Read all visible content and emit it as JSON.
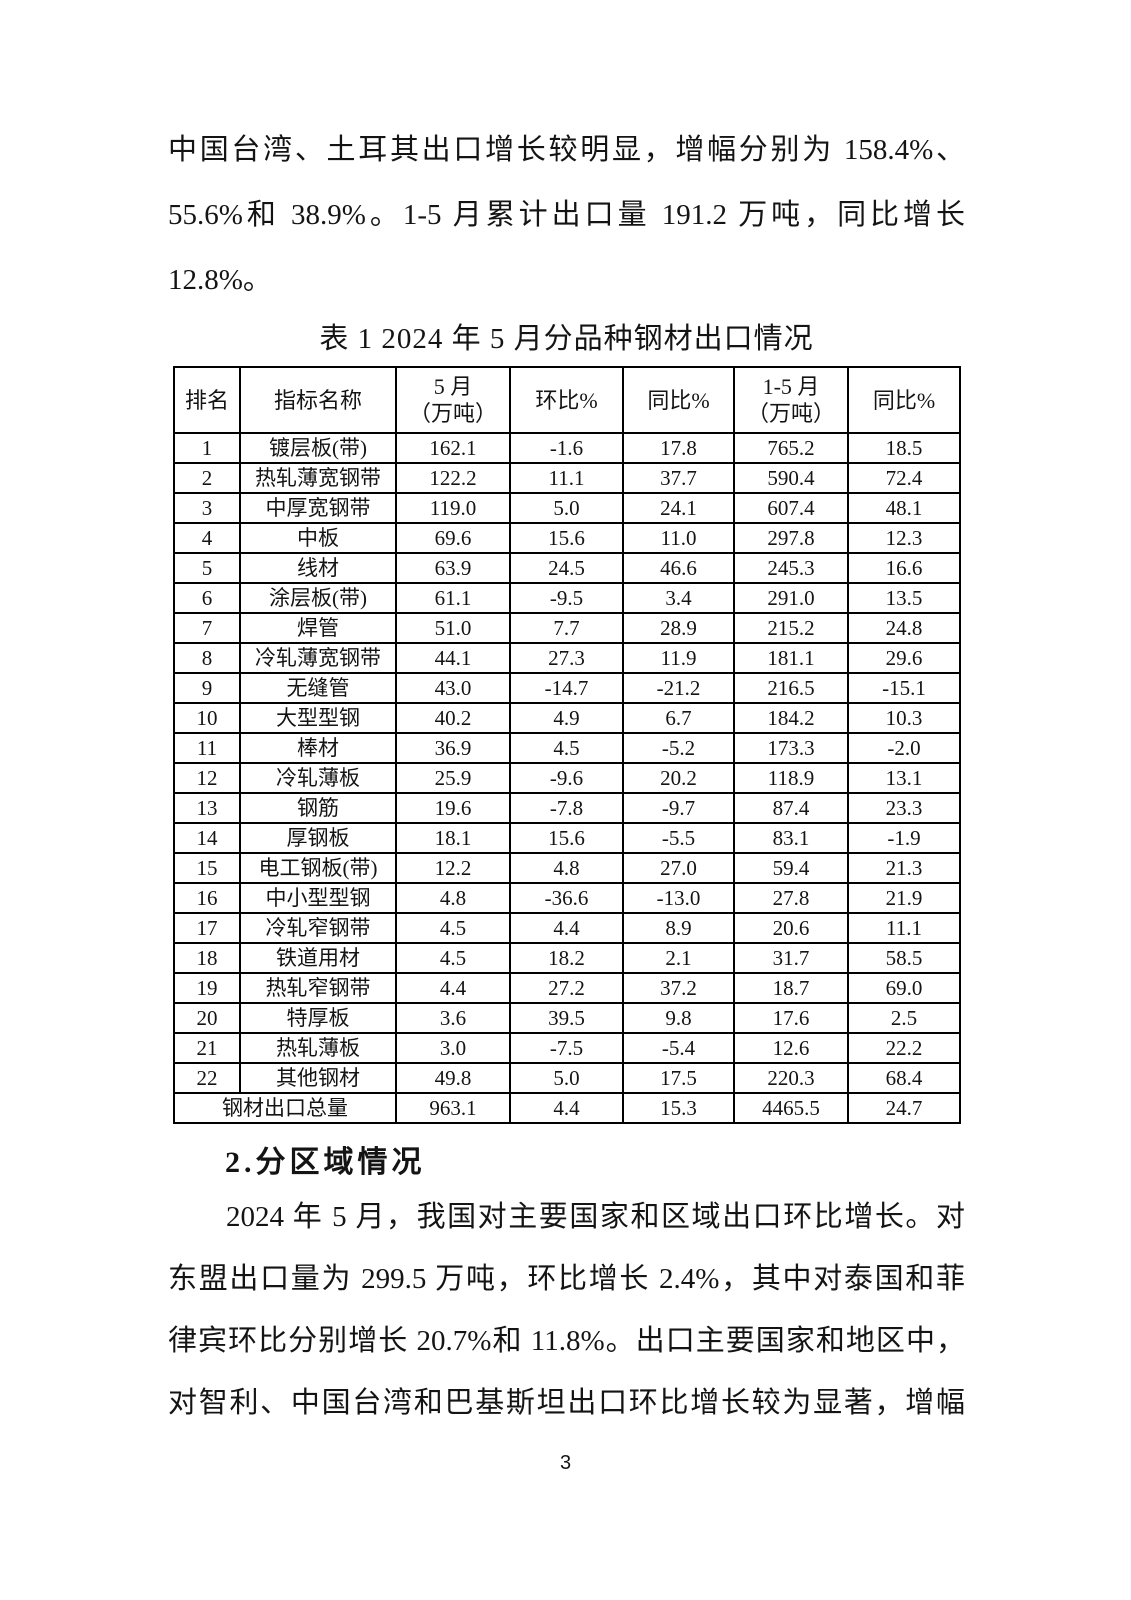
{
  "intro": {
    "lines": [
      "中国台湾、土耳其出口增长较明显，增幅分别为 158.4%、",
      "55.6%和 38.9%。1-5 月累计出口量 191.2 万吨，同比增长",
      "12.8%。"
    ]
  },
  "table": {
    "title": "表 1 2024 年 5 月分品种钢材出口情况",
    "headers": {
      "rank": "排名",
      "name": "指标名称",
      "may": "5 月\n（万吨）",
      "mom": "环比%",
      "yoy": "同比%",
      "cum": "1-5 月\n（万吨）",
      "cum_yoy": "同比%"
    },
    "rows": [
      {
        "rank": "1",
        "name": "镀层板(带)",
        "may": "162.1",
        "mom": "-1.6",
        "yoy": "17.8",
        "cum": "765.2",
        "cum_yoy": "18.5"
      },
      {
        "rank": "2",
        "name": "热轧薄宽钢带",
        "may": "122.2",
        "mom": "11.1",
        "yoy": "37.7",
        "cum": "590.4",
        "cum_yoy": "72.4"
      },
      {
        "rank": "3",
        "name": "中厚宽钢带",
        "may": "119.0",
        "mom": "5.0",
        "yoy": "24.1",
        "cum": "607.4",
        "cum_yoy": "48.1"
      },
      {
        "rank": "4",
        "name": "中板",
        "may": "69.6",
        "mom": "15.6",
        "yoy": "11.0",
        "cum": "297.8",
        "cum_yoy": "12.3"
      },
      {
        "rank": "5",
        "name": "线材",
        "may": "63.9",
        "mom": "24.5",
        "yoy": "46.6",
        "cum": "245.3",
        "cum_yoy": "16.6"
      },
      {
        "rank": "6",
        "name": "涂层板(带)",
        "may": "61.1",
        "mom": "-9.5",
        "yoy": "3.4",
        "cum": "291.0",
        "cum_yoy": "13.5"
      },
      {
        "rank": "7",
        "name": "焊管",
        "may": "51.0",
        "mom": "7.7",
        "yoy": "28.9",
        "cum": "215.2",
        "cum_yoy": "24.8"
      },
      {
        "rank": "8",
        "name": "冷轧薄宽钢带",
        "may": "44.1",
        "mom": "27.3",
        "yoy": "11.9",
        "cum": "181.1",
        "cum_yoy": "29.6"
      },
      {
        "rank": "9",
        "name": "无缝管",
        "may": "43.0",
        "mom": "-14.7",
        "yoy": "-21.2",
        "cum": "216.5",
        "cum_yoy": "-15.1"
      },
      {
        "rank": "10",
        "name": "大型型钢",
        "may": "40.2",
        "mom": "4.9",
        "yoy": "6.7",
        "cum": "184.2",
        "cum_yoy": "10.3"
      },
      {
        "rank": "11",
        "name": "棒材",
        "may": "36.9",
        "mom": "4.5",
        "yoy": "-5.2",
        "cum": "173.3",
        "cum_yoy": "-2.0"
      },
      {
        "rank": "12",
        "name": "冷轧薄板",
        "may": "25.9",
        "mom": "-9.6",
        "yoy": "20.2",
        "cum": "118.9",
        "cum_yoy": "13.1"
      },
      {
        "rank": "13",
        "name": "钢筋",
        "may": "19.6",
        "mom": "-7.8",
        "yoy": "-9.7",
        "cum": "87.4",
        "cum_yoy": "23.3"
      },
      {
        "rank": "14",
        "name": "厚钢板",
        "may": "18.1",
        "mom": "15.6",
        "yoy": "-5.5",
        "cum": "83.1",
        "cum_yoy": "-1.9"
      },
      {
        "rank": "15",
        "name": "电工钢板(带)",
        "may": "12.2",
        "mom": "4.8",
        "yoy": "27.0",
        "cum": "59.4",
        "cum_yoy": "21.3"
      },
      {
        "rank": "16",
        "name": "中小型型钢",
        "may": "4.8",
        "mom": "-36.6",
        "yoy": "-13.0",
        "cum": "27.8",
        "cum_yoy": "21.9"
      },
      {
        "rank": "17",
        "name": "冷轧窄钢带",
        "may": "4.5",
        "mom": "4.4",
        "yoy": "8.9",
        "cum": "20.6",
        "cum_yoy": "11.1"
      },
      {
        "rank": "18",
        "name": "铁道用材",
        "may": "4.5",
        "mom": "18.2",
        "yoy": "2.1",
        "cum": "31.7",
        "cum_yoy": "58.5"
      },
      {
        "rank": "19",
        "name": "热轧窄钢带",
        "may": "4.4",
        "mom": "27.2",
        "yoy": "37.2",
        "cum": "18.7",
        "cum_yoy": "69.0"
      },
      {
        "rank": "20",
        "name": "特厚板",
        "may": "3.6",
        "mom": "39.5",
        "yoy": "9.8",
        "cum": "17.6",
        "cum_yoy": "2.5"
      },
      {
        "rank": "21",
        "name": "热轧薄板",
        "may": "3.0",
        "mom": "-7.5",
        "yoy": "-5.4",
        "cum": "12.6",
        "cum_yoy": "22.2"
      },
      {
        "rank": "22",
        "name": "其他钢材",
        "may": "49.8",
        "mom": "5.0",
        "yoy": "17.5",
        "cum": "220.3",
        "cum_yoy": "68.4"
      }
    ],
    "total": {
      "label": "钢材出口总量",
      "may": "963.1",
      "mom": "4.4",
      "yoy": "15.3",
      "cum": "4465.5",
      "cum_yoy": "24.7"
    }
  },
  "section2": {
    "heading": "2.分区域情况",
    "lines": [
      "2024 年 5 月，我国对主要国家和区域出口环比增长。对",
      "东盟出口量为 299.5 万吨，环比增长 2.4%，其中对泰国和菲",
      "律宾环比分别增长 20.7%和 11.8%。出口主要国家和地区中，",
      "对智利、中国台湾和巴基斯坦出口环比增长较为显著，增幅"
    ]
  },
  "footer": {
    "page_number": "3"
  }
}
